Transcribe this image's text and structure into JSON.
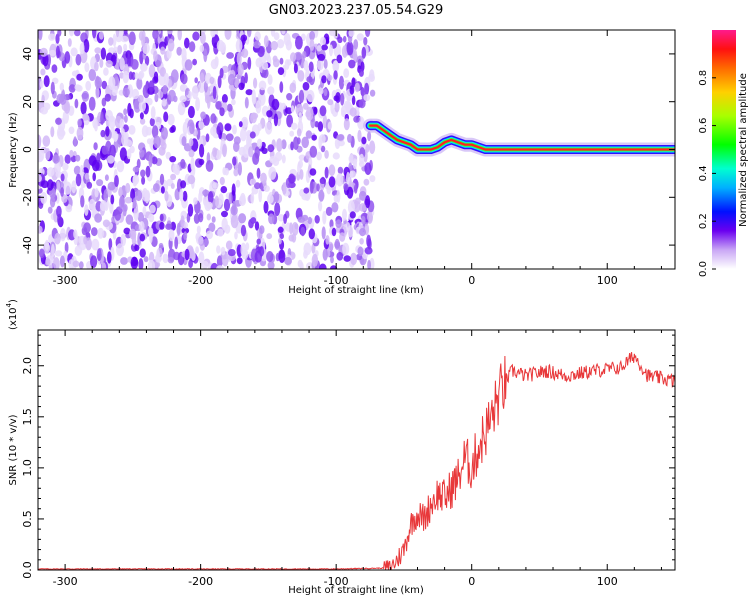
{
  "title": "GN03.2023.237.05.54.G29",
  "chart_data": [
    {
      "type": "heatmap",
      "xlabel": "Height of straight line (km)",
      "ylabel": "Frequency (Hz)",
      "xlim": [
        -320,
        150
      ],
      "ylim": [
        -50,
        50
      ],
      "x_ticks": [
        -300,
        -200,
        -100,
        0,
        100
      ],
      "y_ticks": [
        -40,
        -20,
        0,
        20,
        40
      ],
      "grid": false,
      "noise_region": {
        "x_range": [
          -320,
          -73
        ],
        "y_range": [
          -50,
          50
        ]
      },
      "ridge": {
        "x": [
          -75,
          -70,
          -65,
          -60,
          -55,
          -50,
          -45,
          -40,
          -35,
          -30,
          -25,
          -20,
          -15,
          -10,
          -5,
          0,
          5,
          10,
          30,
          60,
          100,
          150
        ],
        "y": [
          10,
          10,
          8,
          6,
          4,
          3,
          2,
          0,
          0,
          0,
          1,
          3,
          4,
          3,
          2,
          2,
          1,
          0,
          0,
          0,
          0,
          0
        ]
      },
      "colorbar": {
        "label": "Normalized spectral amplitude",
        "range": [
          0.0,
          1.0
        ],
        "ticks": [
          0.0,
          0.2,
          0.4,
          0.6,
          0.8
        ],
        "tick_labels": [
          "0.0",
          "0.2",
          "0.4",
          "0.6",
          "0.8"
        ]
      }
    },
    {
      "type": "line",
      "xlabel": "Height of straight line (km)",
      "ylabel": "SNR (10 * v/v)",
      "scale_label": "(x10",
      "scale_exp": "4",
      "xlim": [
        -320,
        150
      ],
      "ylim": [
        0,
        2.35
      ],
      "x_ticks": [
        -300,
        -200,
        -100,
        0,
        100
      ],
      "y_ticks": [
        0.0,
        0.5,
        1.0,
        1.5,
        2.0
      ],
      "y_tick_labels": [
        "0.0",
        "0.5",
        "1.0",
        "1.5",
        "2.0"
      ],
      "color": "#e8383a",
      "series": [
        {
          "x": [
            -320,
            -200,
            -100,
            -60,
            -55,
            -50,
            -45,
            -40,
            -35,
            -30,
            -25,
            -20,
            -15,
            -10,
            -5,
            0,
            5,
            10,
            15,
            20,
            25,
            30,
            40,
            55,
            70,
            90,
            110,
            120,
            130,
            150
          ],
          "y": [
            0.01,
            0.01,
            0.01,
            0.02,
            0.1,
            0.2,
            0.45,
            0.55,
            0.5,
            0.65,
            0.75,
            0.7,
            0.8,
            0.9,
            1.1,
            1.0,
            1.2,
            1.35,
            1.5,
            1.7,
            1.85,
            1.95,
            1.9,
            1.95,
            1.9,
            1.95,
            1.98,
            2.1,
            1.9,
            1.85
          ]
        }
      ]
    }
  ]
}
